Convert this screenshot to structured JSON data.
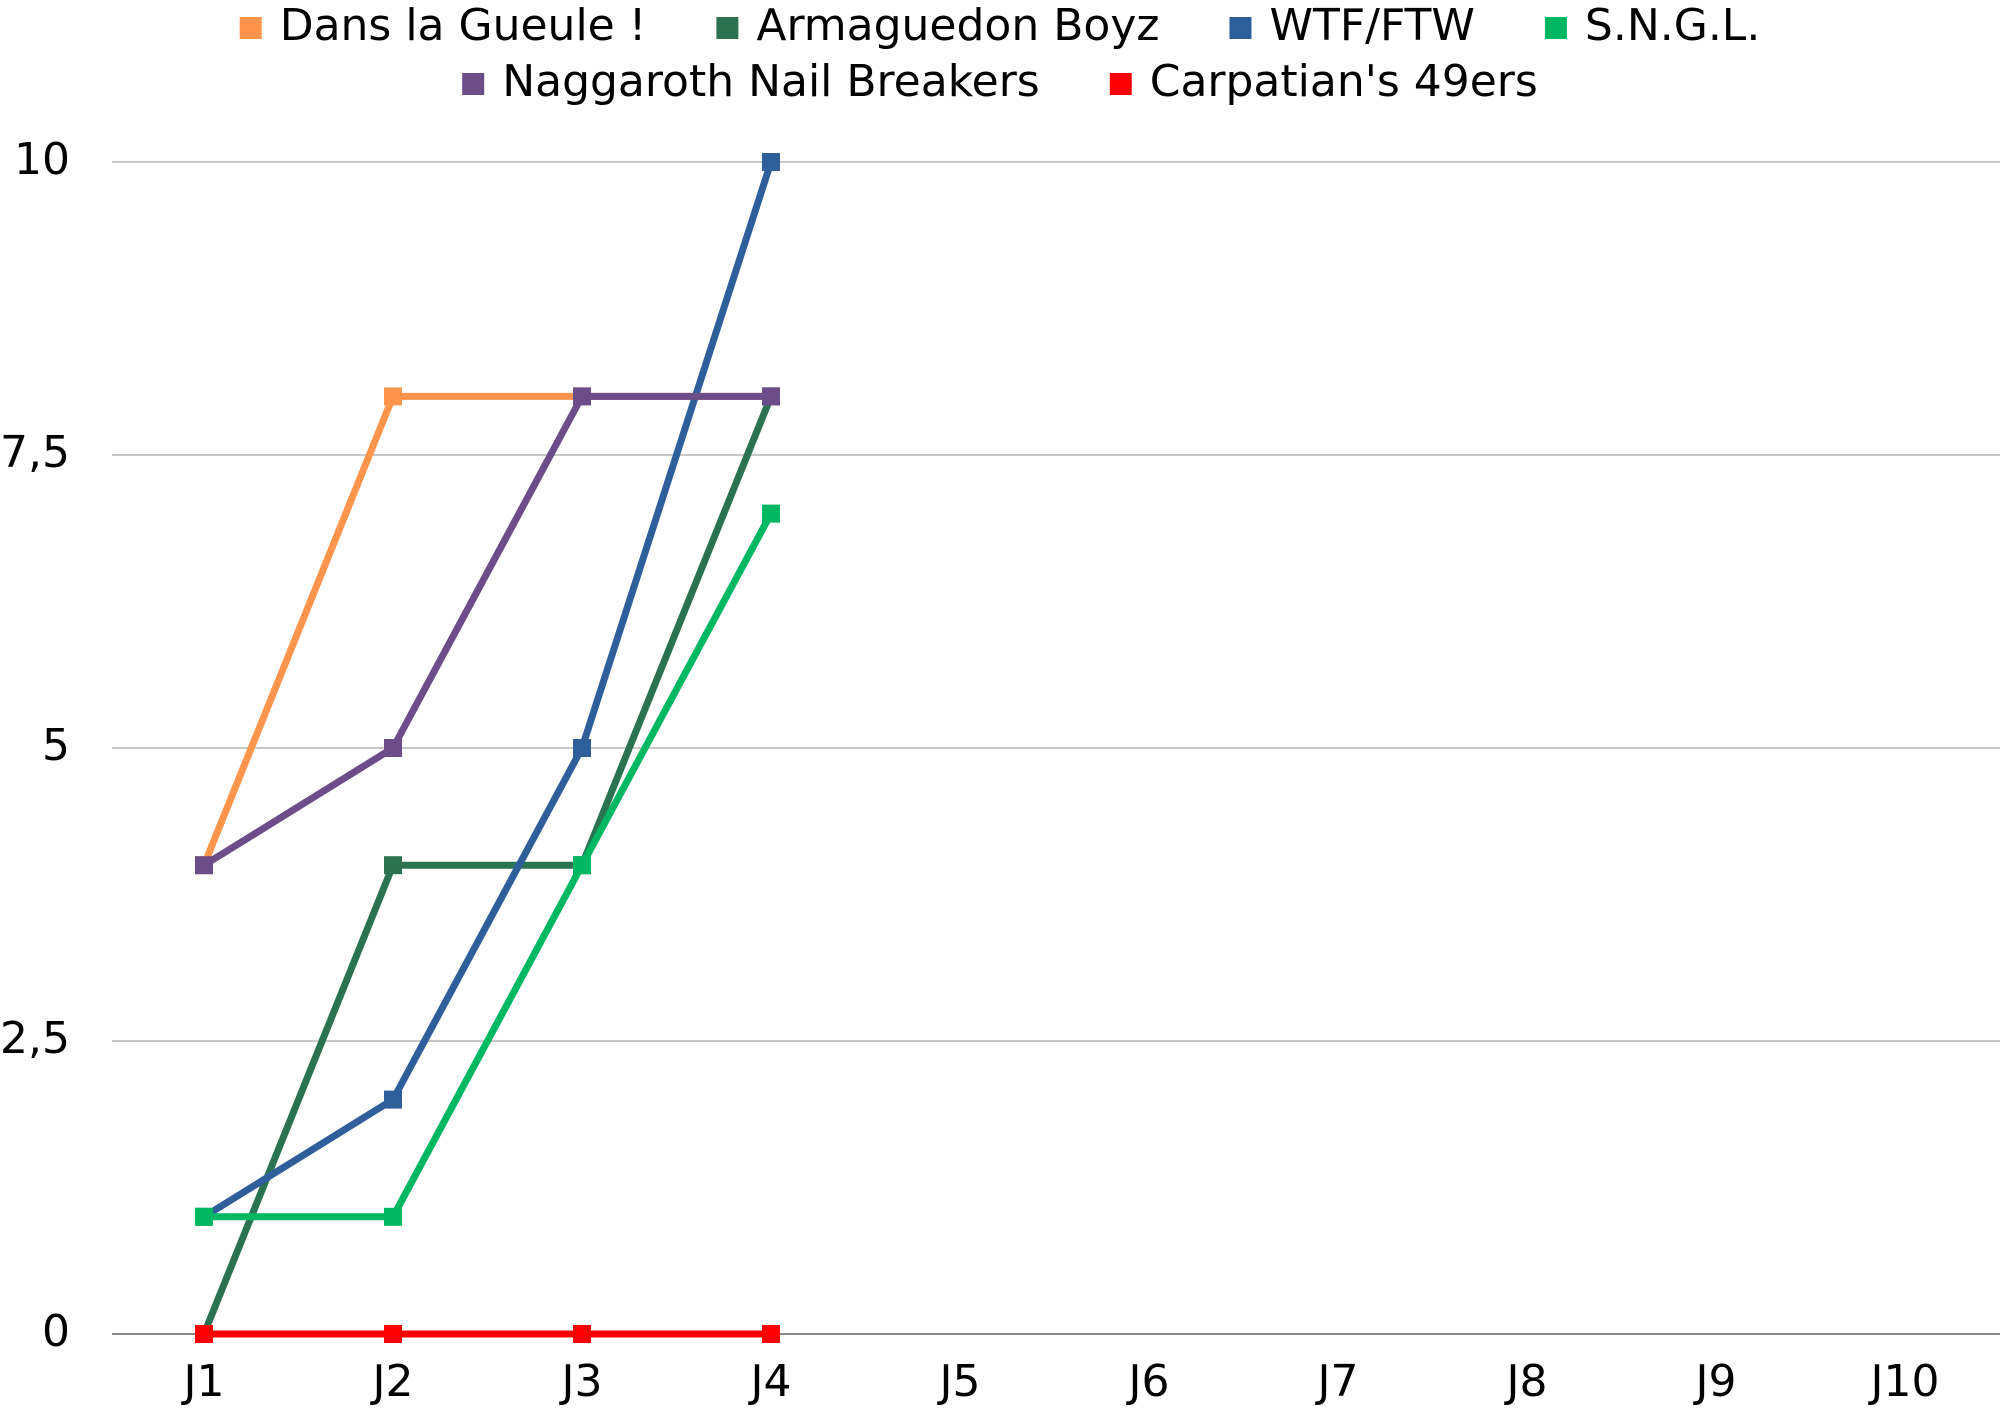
{
  "chart_data": {
    "type": "line",
    "categories": [
      "J1",
      "J2",
      "J3",
      "J4",
      "J5",
      "J6",
      "J7",
      "J8",
      "J9",
      "J10"
    ],
    "series": [
      {
        "name": "Dans la Gueule !",
        "color": "#ff944d",
        "values": [
          4,
          8,
          8,
          8,
          null,
          null,
          null,
          null,
          null,
          null
        ]
      },
      {
        "name": "Armaguedon Boyz",
        "color": "#2b7350",
        "values": [
          0,
          4,
          4,
          8,
          null,
          null,
          null,
          null,
          null,
          null
        ]
      },
      {
        "name": "WTF/FTW",
        "color": "#2e5f9b",
        "values": [
          1,
          2,
          5,
          10,
          null,
          null,
          null,
          null,
          null,
          null
        ]
      },
      {
        "name": "S.N.G.L.",
        "color": "#00b862",
        "values": [
          1,
          1,
          4,
          7,
          null,
          null,
          null,
          null,
          null,
          null
        ]
      },
      {
        "name": "Naggaroth Nail Breakers",
        "color": "#6c4c89",
        "values": [
          4,
          5,
          8,
          8,
          null,
          null,
          null,
          null,
          null,
          null
        ]
      },
      {
        "name": "Carpatian's 49ers",
        "color": "#ff0000",
        "values": [
          0,
          0,
          0,
          0,
          null,
          null,
          null,
          null,
          null,
          null
        ]
      }
    ],
    "ylim": [
      0,
      10
    ],
    "yticks": [
      0,
      {
        "value": 2.5,
        "label": "2,5"
      },
      5,
      {
        "value": 7.5,
        "label": "7,5"
      },
      10
    ],
    "grid": true,
    "legend": "top"
  }
}
